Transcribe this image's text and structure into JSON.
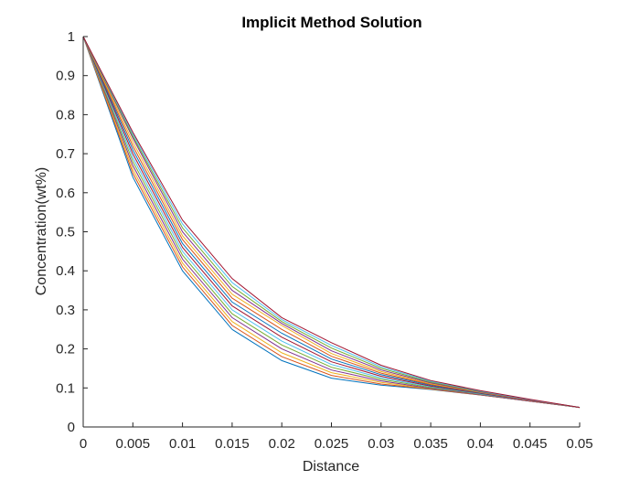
{
  "chart_data": {
    "type": "line",
    "title": "Implicit Method Solution",
    "xlabel": "Distance",
    "ylabel": "Concentration(wt%)",
    "xlim": [
      0,
      0.05
    ],
    "ylim": [
      0,
      1
    ],
    "grid": false,
    "legend": "none",
    "x_ticks": [
      0,
      0.005,
      0.01,
      0.015,
      0.02,
      0.025,
      0.03,
      0.035,
      0.04,
      0.045,
      0.05
    ],
    "x_tick_labels": [
      "0",
      "0.005",
      "0.01",
      "0.015",
      "0.02",
      "0.025",
      "0.03",
      "0.035",
      "0.04",
      "0.045",
      "0.05"
    ],
    "y_ticks": [
      0,
      0.1,
      0.2,
      0.3,
      0.4,
      0.5,
      0.6,
      0.7,
      0.8,
      0.9,
      1
    ],
    "y_tick_labels": [
      "0",
      "0.1",
      "0.2",
      "0.3",
      "0.4",
      "0.5",
      "0.6",
      "0.7",
      "0.8",
      "0.9",
      "1"
    ],
    "x": [
      0,
      0.005,
      0.01,
      0.015,
      0.02,
      0.025,
      0.03,
      0.035,
      0.04,
      0.045,
      0.05
    ],
    "series": [
      {
        "values": [
          1,
          0.64,
          0.4,
          0.25,
          0.17,
          0.125,
          0.107,
          0.096,
          0.082,
          0.066,
          0.05
        ],
        "color": "#0072BD"
      },
      {
        "values": [
          1,
          0.65,
          0.41,
          0.26,
          0.18,
          0.132,
          0.11,
          0.097,
          0.082,
          0.066,
          0.05
        ],
        "color": "#D95319"
      },
      {
        "values": [
          1,
          0.66,
          0.42,
          0.27,
          0.19,
          0.139,
          0.114,
          0.098,
          0.083,
          0.066,
          0.05
        ],
        "color": "#EDB120"
      },
      {
        "values": [
          1,
          0.67,
          0.43,
          0.28,
          0.2,
          0.146,
          0.118,
          0.099,
          0.083,
          0.066,
          0.05
        ],
        "color": "#7E2F8E"
      },
      {
        "values": [
          1,
          0.68,
          0.44,
          0.29,
          0.21,
          0.153,
          0.122,
          0.101,
          0.084,
          0.067,
          0.05
        ],
        "color": "#77AC30"
      },
      {
        "values": [
          1,
          0.69,
          0.45,
          0.3,
          0.22,
          0.16,
          0.126,
          0.103,
          0.085,
          0.067,
          0.05
        ],
        "color": "#4DBEEE"
      },
      {
        "values": [
          1,
          0.7,
          0.46,
          0.31,
          0.23,
          0.167,
          0.13,
          0.105,
          0.086,
          0.067,
          0.05
        ],
        "color": "#A2142F"
      },
      {
        "values": [
          1,
          0.71,
          0.47,
          0.32,
          0.24,
          0.174,
          0.134,
          0.107,
          0.087,
          0.068,
          0.05
        ],
        "color": "#0072BD"
      },
      {
        "values": [
          1,
          0.72,
          0.48,
          0.33,
          0.25,
          0.181,
          0.138,
          0.109,
          0.088,
          0.068,
          0.05
        ],
        "color": "#D95319"
      },
      {
        "values": [
          1,
          0.73,
          0.49,
          0.34,
          0.26,
          0.188,
          0.142,
          0.111,
          0.089,
          0.069,
          0.05
        ],
        "color": "#EDB120"
      },
      {
        "values": [
          1,
          0.74,
          0.5,
          0.35,
          0.265,
          0.195,
          0.146,
          0.113,
          0.09,
          0.069,
          0.05
        ],
        "color": "#7E2F8E"
      },
      {
        "values": [
          1,
          0.745,
          0.51,
          0.36,
          0.27,
          0.202,
          0.15,
          0.115,
          0.091,
          0.07,
          0.05
        ],
        "color": "#77AC30"
      },
      {
        "values": [
          1,
          0.75,
          0.52,
          0.37,
          0.275,
          0.209,
          0.154,
          0.117,
          0.092,
          0.07,
          0.05
        ],
        "color": "#4DBEEE"
      },
      {
        "values": [
          1,
          0.755,
          0.53,
          0.38,
          0.28,
          0.216,
          0.158,
          0.119,
          0.093,
          0.071,
          0.05
        ],
        "color": "#A2142F"
      }
    ]
  }
}
